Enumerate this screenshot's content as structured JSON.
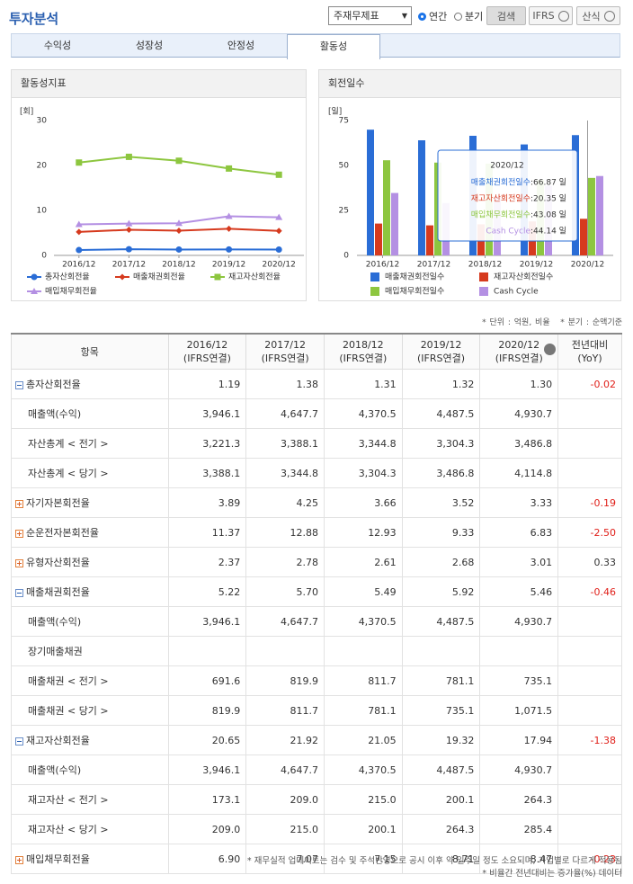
{
  "header": {
    "title": "투자분석",
    "statement_select": "주재무제표",
    "period_options": [
      "연간",
      "분기"
    ],
    "search_button": "검색",
    "ifrs_button": "IFRS",
    "formula_button": "산식"
  },
  "tabs": [
    "수익성",
    "성장성",
    "안정성",
    "활동성"
  ],
  "chart_data": [
    {
      "type": "line",
      "title": "활동성지표",
      "y_unit": "[회]",
      "categories": [
        "2016/12",
        "2017/12",
        "2018/12",
        "2019/12",
        "2020/12"
      ],
      "ylim": [
        0,
        30
      ],
      "yticks": [
        0,
        10,
        20,
        30
      ],
      "grid": false,
      "series": [
        {
          "name": "총자산회전율",
          "color": "#2a6dd6",
          "marker": "circle",
          "values": [
            1.19,
            1.38,
            1.31,
            1.32,
            1.3
          ]
        },
        {
          "name": "매출채권회전율",
          "color": "#d63a1e",
          "marker": "diamond",
          "values": [
            5.22,
            5.7,
            5.49,
            5.92,
            5.46
          ]
        },
        {
          "name": "재고자산회전율",
          "color": "#8dc63f",
          "marker": "square",
          "values": [
            20.65,
            21.92,
            21.05,
            19.32,
            17.94
          ]
        },
        {
          "name": "매입채무회전율",
          "color": "#b490e3",
          "marker": "triangle",
          "values": [
            6.9,
            7.07,
            7.15,
            8.71,
            8.47
          ]
        }
      ]
    },
    {
      "type": "bar",
      "title": "회전일수",
      "y_unit": "[일]",
      "categories": [
        "2016/12",
        "2017/12",
        "2018/12",
        "2019/12",
        "2020/12"
      ],
      "ylim": [
        0,
        75
      ],
      "yticks": [
        0,
        25,
        50,
        75
      ],
      "grid": false,
      "series": [
        {
          "name": "매출채권회전일수",
          "color": "#2a6dd6",
          "values": [
            69.9,
            64.0,
            66.5,
            61.7,
            66.87
          ],
          "value_labels": [
            null,
            null,
            null,
            null,
            ":66.87 일"
          ]
        },
        {
          "name": "재고자산회전일수",
          "color": "#d63a1e",
          "values": [
            17.7,
            16.7,
            17.3,
            18.9,
            20.35
          ],
          "value_labels": [
            null,
            null,
            null,
            null,
            ":20.35 일"
          ]
        },
        {
          "name": "매입채무회전일수",
          "color": "#8dc63f",
          "values": [
            52.9,
            51.6,
            51.0,
            41.9,
            43.08
          ],
          "value_labels": [
            null,
            null,
            null,
            null,
            ":43.08 일"
          ]
        },
        {
          "name": "Cash Cycle",
          "color": "#b490e3",
          "values": [
            34.7,
            29.1,
            32.8,
            38.7,
            44.14
          ],
          "value_labels": [
            null,
            null,
            null,
            null,
            ":44.14 일"
          ]
        }
      ]
    }
  ],
  "notes": [
    "* 단위 : 억원, 비율",
    "* 분기 : 순액기준"
  ],
  "table": {
    "header": [
      "항목",
      [
        "2016/12",
        "(IFRS연결)"
      ],
      [
        "2017/12",
        "(IFRS연결)"
      ],
      [
        "2018/12",
        "(IFRS연결)"
      ],
      [
        "2019/12",
        "(IFRS연결)"
      ],
      [
        "2020/12",
        "(IFRS연결)"
      ],
      [
        "전년대비",
        "(YoY)"
      ]
    ],
    "rows": [
      {
        "label": "총자산회전율",
        "icon": "minus",
        "values": [
          "1.19",
          "1.38",
          "1.31",
          "1.32",
          "1.30"
        ],
        "yoy": "-0.02"
      },
      {
        "label": "매출액(수익)",
        "values": [
          "3,946.1",
          "4,647.7",
          "4,370.5",
          "4,487.5",
          "4,930.7"
        ]
      },
      {
        "label": "자산총계 < 전기 >",
        "values": [
          "3,221.3",
          "3,388.1",
          "3,344.8",
          "3,304.3",
          "3,486.8"
        ]
      },
      {
        "label": "자산총계 < 당기 >",
        "values": [
          "3,388.1",
          "3,344.8",
          "3,304.3",
          "3,486.8",
          "4,114.8"
        ]
      },
      {
        "label": "자기자본회전율",
        "icon": "plus",
        "values": [
          "3.89",
          "4.25",
          "3.66",
          "3.52",
          "3.33"
        ],
        "yoy": "-0.19"
      },
      {
        "label": "순운전자본회전율",
        "icon": "plus",
        "values": [
          "11.37",
          "12.88",
          "12.93",
          "9.33",
          "6.83"
        ],
        "yoy": "-2.50"
      },
      {
        "label": "유형자산회전율",
        "icon": "plus",
        "values": [
          "2.37",
          "2.78",
          "2.61",
          "2.68",
          "3.01"
        ],
        "yoy": "0.33"
      },
      {
        "label": "매출채권회전율",
        "icon": "minus",
        "values": [
          "5.22",
          "5.70",
          "5.49",
          "5.92",
          "5.46"
        ],
        "yoy": "-0.46"
      },
      {
        "label": "매출액(수익)",
        "values": [
          "3,946.1",
          "4,647.7",
          "4,370.5",
          "4,487.5",
          "4,930.7"
        ]
      },
      {
        "label": "장기매출채권",
        "values": [
          null,
          null,
          null,
          null,
          null
        ]
      },
      {
        "label": "매출채권 < 전기 >",
        "values": [
          "691.6",
          "819.9",
          "811.7",
          "781.1",
          "735.1"
        ]
      },
      {
        "label": "매출채권 < 당기 >",
        "values": [
          "819.9",
          "811.7",
          "781.1",
          "735.1",
          "1,071.5"
        ]
      },
      {
        "label": "재고자산회전율",
        "icon": "minus",
        "values": [
          "20.65",
          "21.92",
          "21.05",
          "19.32",
          "17.94"
        ],
        "yoy": "-1.38"
      },
      {
        "label": "매출액(수익)",
        "values": [
          "3,946.1",
          "4,647.7",
          "4,370.5",
          "4,487.5",
          "4,930.7"
        ]
      },
      {
        "label": "재고자산 < 전기 >",
        "values": [
          "173.1",
          "209.0",
          "215.0",
          "200.1",
          "264.3"
        ]
      },
      {
        "label": "재고자산 < 당기 >",
        "values": [
          "209.0",
          "215.0",
          "200.1",
          "264.3",
          "285.4"
        ]
      },
      {
        "label": "매입채무회전율",
        "icon": "plus",
        "values": [
          "6.90",
          "7.07",
          "7.15",
          "8.71",
          "8.47"
        ],
        "yoy": "-0.23"
      }
    ]
  },
  "footer": [
    "* 재무실적 업데이트는 검수 및 주석반영으로 공시 이후 약 일주일 정도 소요되며, 기업별로 다르게 적용됨",
    "* 비율간 전년대비는 증가율(%) 데이터"
  ]
}
